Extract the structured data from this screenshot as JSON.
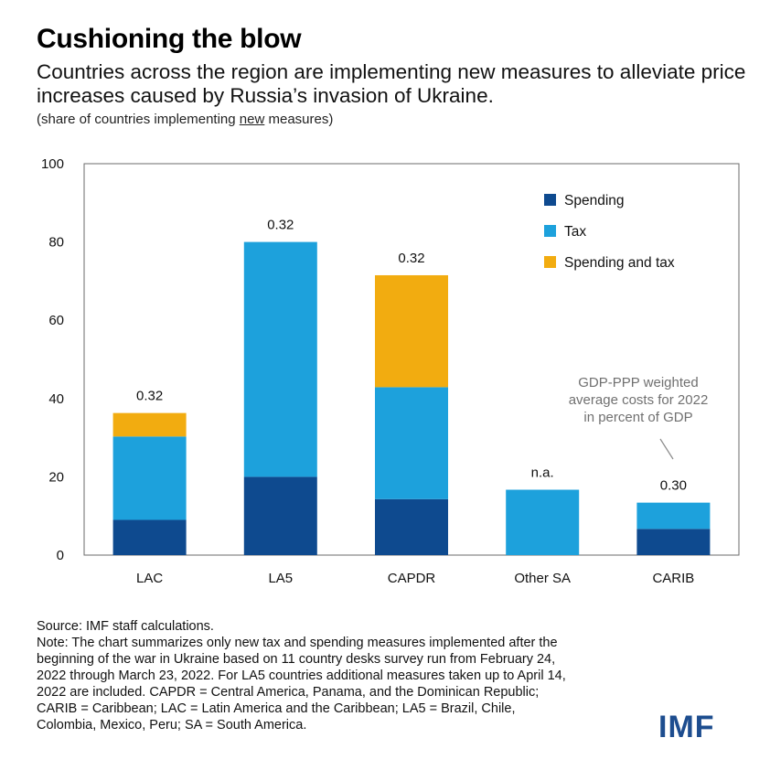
{
  "header": {
    "title": "Cushioning the blow",
    "subtitle": "Countries across the region are implementing new measures to alleviate price increases caused by Russia’s invasion of Ukraine.",
    "note_prefix": "(share of countries implementing ",
    "note_emph": "new",
    "note_suffix": " measures)"
  },
  "chart_data": {
    "type": "bar",
    "stacked": true,
    "categories": [
      "LAC",
      "LA5",
      "CAPDR",
      "Other SA",
      "CARIB"
    ],
    "series": [
      {
        "name": "Spending",
        "color": "#0e4a8f",
        "values": [
          9,
          20,
          14.3,
          0,
          6.7
        ]
      },
      {
        "name": "Tax",
        "color": "#1da1dc",
        "values": [
          21.3,
          60,
          28.6,
          16.7,
          6.7
        ]
      },
      {
        "name": "Spending and tax",
        "color": "#f2ac10",
        "values": [
          6,
          0,
          28.6,
          0,
          0
        ]
      }
    ],
    "bar_labels": [
      "0.32",
      "0.32",
      "0.32",
      "n.a.",
      "0.30"
    ],
    "ylim": [
      0,
      100
    ],
    "yticks": [
      0,
      20,
      40,
      60,
      80,
      100
    ],
    "legend_position": "top-right",
    "annotation": [
      "GDP-PPP weighted",
      "average costs for 2022",
      "in percent of GDP"
    ],
    "grid": false
  },
  "footer": {
    "lines": [
      "Source: IMF staff calculations.",
      "Note: The chart summarizes only new tax and spending measures implemented after the",
      "beginning of the war in Ukraine based on 11 country desks survey run from February 24,",
      "2022 through March 23, 2022. For LA5 countries additional measures taken up to April 14,",
      "2022 are included. CAPDR = Central America, Panama, and the Dominican Republic;",
      "CARIB = Caribbean; LAC = Latin America and the Caribbean; LA5 = Brazil, Chile,",
      "Colombia, Mexico, Peru; SA = South America."
    ],
    "logo": "IMF"
  }
}
